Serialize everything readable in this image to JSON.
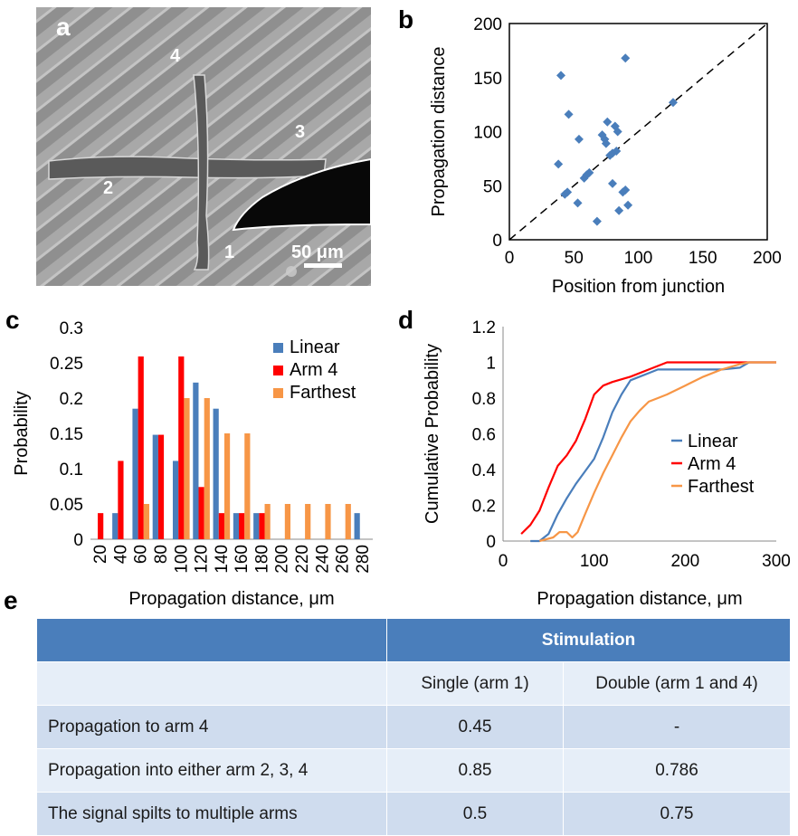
{
  "labels": {
    "a": "a",
    "b": "b",
    "c": "c",
    "d": "d",
    "e": "e"
  },
  "micrograph": {
    "arm_labels": [
      "1",
      "2",
      "3",
      "4"
    ],
    "scale_bar": "50 μm"
  },
  "chart_data": [
    {
      "panel": "b",
      "type": "scatter",
      "xlabel": "Position from junction",
      "ylabel": "Propagation distance",
      "xlim": [
        0,
        200
      ],
      "ylim": [
        0,
        200
      ],
      "xticks": [
        "0",
        "50",
        "100",
        "150",
        "200"
      ],
      "yticks": [
        "0",
        "50",
        "100",
        "150",
        "200"
      ],
      "reference_line": "y = x (dashed)",
      "marker_color": "#4a7ebb",
      "points": [
        [
          40,
          152
        ],
        [
          43,
          42
        ],
        [
          45,
          44
        ],
        [
          46,
          116
        ],
        [
          38,
          70
        ],
        [
          53,
          34
        ],
        [
          54,
          93
        ],
        [
          58,
          57
        ],
        [
          62,
          62
        ],
        [
          60,
          60
        ],
        [
          68,
          17
        ],
        [
          72,
          97
        ],
        [
          74,
          93
        ],
        [
          75,
          89
        ],
        [
          76,
          109
        ],
        [
          78,
          78
        ],
        [
          80,
          80
        ],
        [
          82,
          105
        ],
        [
          83,
          82
        ],
        [
          84,
          100
        ],
        [
          80,
          52
        ],
        [
          85,
          27
        ],
        [
          88,
          44
        ],
        [
          90,
          46
        ],
        [
          92,
          32
        ],
        [
          90,
          168
        ],
        [
          127,
          127
        ]
      ]
    },
    {
      "panel": "c",
      "type": "bar",
      "xlabel": "Propagation distance, μm",
      "ylabel": "Probability",
      "ylim": [
        0,
        0.3
      ],
      "yticks": [
        "0",
        "0.05",
        "0.1",
        "0.15",
        "0.2",
        "0.25",
        "0.3"
      ],
      "legend_position": "top-right",
      "categories": [
        "20",
        "40",
        "60",
        "80",
        "100",
        "120",
        "140",
        "160",
        "180",
        "200",
        "220",
        "240",
        "260",
        "280"
      ],
      "series": [
        {
          "name": "Linear",
          "color": "#4a7ebb",
          "values": [
            0,
            0.037,
            0.185,
            0.148,
            0.111,
            0.222,
            0.185,
            0.037,
            0.037,
            0,
            0,
            0,
            0,
            0.037
          ]
        },
        {
          "name": "Arm 4",
          "color": "#ff0000",
          "values": [
            0.037,
            0.111,
            0.259,
            0.148,
            0.259,
            0.074,
            0.037,
            0.037,
            0.037,
            0,
            0,
            0,
            0,
            0
          ]
        },
        {
          "name": "Farthest",
          "color": "#f79646",
          "values": [
            0,
            0,
            0.05,
            0,
            0.2,
            0.2,
            0.15,
            0.15,
            0.05,
            0.05,
            0.05,
            0.05,
            0.05,
            0
          ]
        }
      ]
    },
    {
      "panel": "d",
      "type": "line",
      "xlabel": "Propagation distance, μm",
      "ylabel": "Cumulative Probability",
      "xlim": [
        0,
        300
      ],
      "ylim": [
        0,
        1.2
      ],
      "xticks": [
        "0",
        "100",
        "200",
        "300"
      ],
      "yticks": [
        "0",
        "0.2",
        "0.4",
        "0.6",
        "0.8",
        "1",
        "1.2"
      ],
      "legend_position": "right",
      "series": [
        {
          "name": "Linear",
          "color": "#4a7ebb",
          "points": [
            [
              30,
              0
            ],
            [
              40,
              0.0
            ],
            [
              50,
              0.04
            ],
            [
              60,
              0.15
            ],
            [
              70,
              0.24
            ],
            [
              80,
              0.32
            ],
            [
              90,
              0.39
            ],
            [
              100,
              0.46
            ],
            [
              110,
              0.58
            ],
            [
              120,
              0.72
            ],
            [
              130,
              0.82
            ],
            [
              140,
              0.9
            ],
            [
              150,
              0.92
            ],
            [
              160,
              0.94
            ],
            [
              170,
              0.96
            ],
            [
              180,
              0.96
            ],
            [
              200,
              0.96
            ],
            [
              240,
              0.96
            ],
            [
              260,
              0.97
            ],
            [
              270,
              1.0
            ],
            [
              300,
              1.0
            ]
          ]
        },
        {
          "name": "Arm 4",
          "color": "#ff0000",
          "points": [
            [
              20,
              0.04
            ],
            [
              30,
              0.09
            ],
            [
              40,
              0.17
            ],
            [
              50,
              0.3
            ],
            [
              60,
              0.42
            ],
            [
              70,
              0.48
            ],
            [
              80,
              0.56
            ],
            [
              90,
              0.68
            ],
            [
              100,
              0.82
            ],
            [
              110,
              0.87
            ],
            [
              120,
              0.89
            ],
            [
              140,
              0.92
            ],
            [
              160,
              0.96
            ],
            [
              180,
              1.0
            ],
            [
              200,
              1.0
            ],
            [
              300,
              1.0
            ]
          ]
        },
        {
          "name": "Farthest",
          "color": "#f79646",
          "points": [
            [
              40,
              0
            ],
            [
              55,
              0.02
            ],
            [
              62,
              0.05
            ],
            [
              70,
              0.05
            ],
            [
              76,
              0.02
            ],
            [
              82,
              0.05
            ],
            [
              90,
              0.15
            ],
            [
              100,
              0.27
            ],
            [
              110,
              0.38
            ],
            [
              120,
              0.48
            ],
            [
              130,
              0.58
            ],
            [
              140,
              0.67
            ],
            [
              150,
              0.73
            ],
            [
              160,
              0.78
            ],
            [
              170,
              0.8
            ],
            [
              180,
              0.82
            ],
            [
              200,
              0.87
            ],
            [
              220,
              0.92
            ],
            [
              240,
              0.96
            ],
            [
              260,
              0.99
            ],
            [
              270,
              1.0
            ],
            [
              300,
              1.0
            ]
          ]
        }
      ]
    }
  ],
  "table": {
    "header": [
      "",
      "Stimulation"
    ],
    "subheader": [
      "",
      "Single (arm 1)",
      "Double (arm 1 and 4)"
    ],
    "rows": [
      [
        "Propagation to arm 4",
        "0.45",
        "-"
      ],
      [
        "Propagation into either arm 2, 3, 4",
        "0.85",
        "0.786"
      ],
      [
        "The signal spilts to multiple arms",
        "0.5",
        "0.75"
      ]
    ]
  }
}
